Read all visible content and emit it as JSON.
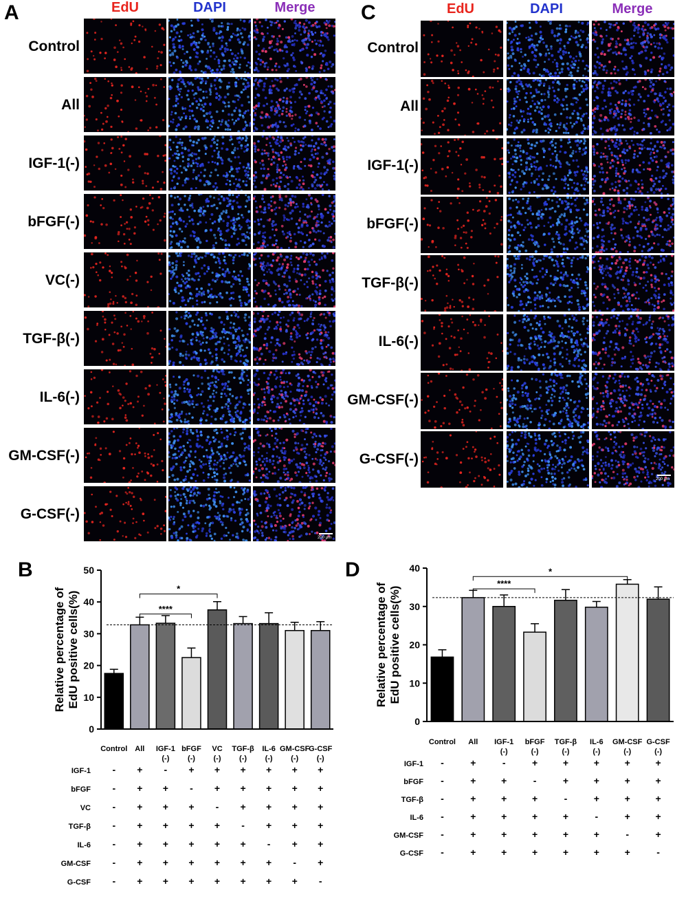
{
  "figure": {
    "panels": {
      "A": "A",
      "B": "B",
      "C": "C",
      "D": "D"
    },
    "channels": [
      "EdU",
      "DAPI",
      "Merge"
    ],
    "channel_colors": {
      "EdU": "#e8241c",
      "DAPI": "#2233cc",
      "Merge": "#8b2fb8"
    },
    "scale_bar": "200 μm",
    "panel_A_rows": [
      "Control",
      "All",
      "IGF-1(-)",
      "bFGF(-)",
      "VC(-)",
      "TGF-β(-)",
      "IL-6(-)",
      "GM-CSF(-)",
      "G-CSF(-)"
    ],
    "panel_C_rows": [
      "Control",
      "All",
      "IGF-1(-)",
      "bFGF(-)",
      "TGF-β(-)",
      "IL-6(-)",
      "GM-CSF(-)",
      "G-CSF(-)"
    ]
  },
  "chart_data": [
    {
      "panel": "B",
      "type": "bar",
      "ylabel": "Relative percentage of\nEdU positive cells(%)",
      "ylim": [
        0,
        50
      ],
      "yticks": [
        0,
        10,
        20,
        30,
        40,
        50
      ],
      "categories": [
        "Control",
        "All",
        "IGF-1\n(-)",
        "bFGF\n(-)",
        "VC\n(-)",
        "TGF-β\n(-)",
        "IL-6\n(-)",
        "GM-CSF\n(-)",
        "G-CSF\n(-)"
      ],
      "values": [
        17.5,
        32.8,
        33.3,
        22.5,
        37.5,
        33.2,
        33.2,
        31.0,
        31.0
      ],
      "errors": [
        1.3,
        2.4,
        2.4,
        3.0,
        2.6,
        2.2,
        3.4,
        2.6,
        2.8
      ],
      "bar_colors": [
        "#000000",
        "#a1a1ad",
        "#6b6b6b",
        "#dcdcdc",
        "#5a5a5a",
        "#a1a1ad",
        "#5a5a5a",
        "#e0e0e0",
        "#a1a1ad"
      ],
      "reference_line": 32.8,
      "significance": [
        {
          "from": 1,
          "to": 4,
          "label": "*",
          "y": 42.5
        },
        {
          "from": 1,
          "to": 3,
          "label": "****",
          "y": 36.2
        }
      ],
      "condition_table": {
        "factors": [
          "IGF-1",
          "bFGF",
          "VC",
          "TGF-β",
          "IL-6",
          "GM-CSF",
          "G-CSF"
        ],
        "rows": [
          [
            "-",
            "+",
            "-",
            "+",
            "+",
            "+",
            "+",
            "+",
            "+"
          ],
          [
            "-",
            "+",
            "+",
            "-",
            "+",
            "+",
            "+",
            "+",
            "+"
          ],
          [
            "-",
            "+",
            "+",
            "+",
            "-",
            "+",
            "+",
            "+",
            "+"
          ],
          [
            "-",
            "+",
            "+",
            "+",
            "+",
            "-",
            "+",
            "+",
            "+"
          ],
          [
            "-",
            "+",
            "+",
            "+",
            "+",
            "+",
            "-",
            "+",
            "+"
          ],
          [
            "-",
            "+",
            "+",
            "+",
            "+",
            "+",
            "+",
            "-",
            "+"
          ],
          [
            "-",
            "+",
            "+",
            "+",
            "+",
            "+",
            "+",
            "+",
            "-"
          ]
        ]
      }
    },
    {
      "panel": "D",
      "type": "bar",
      "ylabel": "Relative percentage of\nEdU positive cells(%)",
      "ylim": [
        0,
        40
      ],
      "yticks": [
        0,
        10,
        20,
        30,
        40
      ],
      "categories": [
        "Control",
        "All",
        "IGF-1\n(-)",
        "bFGF\n(-)",
        "TGF-β\n(-)",
        "IL-6\n(-)",
        "GM-CSF\n(-)",
        "G-CSF\n(-)"
      ],
      "values": [
        16.8,
        32.3,
        30.0,
        23.3,
        31.6,
        29.8,
        35.8,
        31.9
      ],
      "errors": [
        1.9,
        1.9,
        3.0,
        2.2,
        2.8,
        1.5,
        1.2,
        3.2
      ],
      "bar_colors": [
        "#000000",
        "#a1a1ad",
        "#5f5f5f",
        "#dcdcdc",
        "#5f5f5f",
        "#a1a1ad",
        "#e8e8e8",
        "#5a5a5a"
      ],
      "reference_line": 32.3,
      "significance": [
        {
          "from": 1,
          "to": 6,
          "label": "*",
          "y": 37.8
        },
        {
          "from": 1,
          "to": 3,
          "label": "****",
          "y": 34.6
        }
      ],
      "condition_table": {
        "factors": [
          "IGF-1",
          "bFGF",
          "TGF-β",
          "IL-6",
          "GM-CSF",
          "G-CSF"
        ],
        "rows": [
          [
            "-",
            "+",
            "-",
            "+",
            "+",
            "+",
            "+",
            "+"
          ],
          [
            "-",
            "+",
            "+",
            "-",
            "+",
            "+",
            "+",
            "+"
          ],
          [
            "-",
            "+",
            "+",
            "+",
            "-",
            "+",
            "+",
            "+"
          ],
          [
            "-",
            "+",
            "+",
            "+",
            "+",
            "-",
            "+",
            "+"
          ],
          [
            "-",
            "+",
            "+",
            "+",
            "+",
            "+",
            "-",
            "+"
          ],
          [
            "-",
            "+",
            "+",
            "+",
            "+",
            "+",
            "+",
            "-"
          ]
        ]
      }
    }
  ]
}
